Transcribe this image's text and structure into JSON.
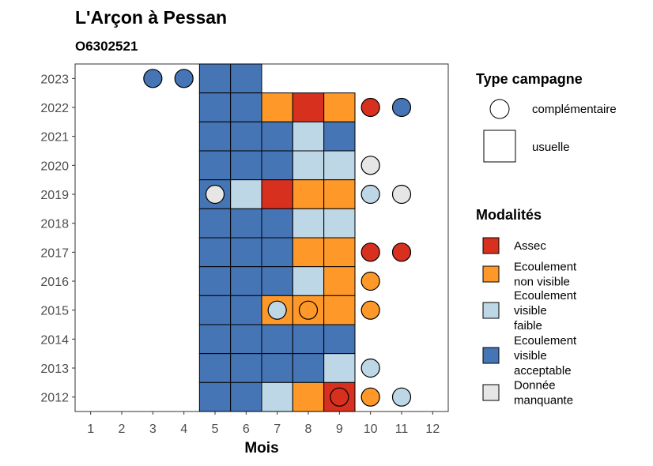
{
  "colors": {
    "assec": "#D7301F",
    "nonvisible": "#FE9929",
    "faible": "#BDD7E7",
    "acceptable": "#4575B4",
    "manquante": "#E6E6E6"
  },
  "chart_data": {
    "type": "heatmap",
    "title": "L'Arçon à Pessan",
    "subtitle": "O6302521",
    "xlabel": "Mois",
    "ylabel": "",
    "x_ticks": [
      "1",
      "2",
      "3",
      "4",
      "5",
      "6",
      "7",
      "8",
      "9",
      "10",
      "11",
      "12"
    ],
    "y_ticks": [
      "2012",
      "2013",
      "2014",
      "2015",
      "2016",
      "2017",
      "2018",
      "2019",
      "2020",
      "2021",
      "2022",
      "2023"
    ],
    "xlim": [
      0.5,
      12.5
    ],
    "ylim": [
      2011.5,
      2023.5
    ],
    "grid": false,
    "legend_shape": {
      "title": "Type campagne",
      "items": [
        {
          "label": "complémentaire",
          "shape": "circle"
        },
        {
          "label": "usuelle",
          "shape": "square"
        }
      ]
    },
    "legend_color": {
      "title": "Modalités",
      "items": [
        {
          "label_lines": [
            "Assec"
          ],
          "key": "assec"
        },
        {
          "label_lines": [
            "Ecoulement",
            "non visible"
          ],
          "key": "nonvisible"
        },
        {
          "label_lines": [
            "Ecoulement",
            "visible",
            "faible"
          ],
          "key": "faible"
        },
        {
          "label_lines": [
            "Ecoulement",
            "visible",
            "acceptable"
          ],
          "key": "acceptable"
        },
        {
          "label_lines": [
            "Donnée",
            "manquante"
          ],
          "key": "manquante"
        }
      ]
    },
    "usuelle": [
      {
        "year": 2023,
        "month": 5,
        "mod": "acceptable"
      },
      {
        "year": 2023,
        "month": 6,
        "mod": "acceptable"
      },
      {
        "year": 2022,
        "month": 5,
        "mod": "acceptable"
      },
      {
        "year": 2022,
        "month": 6,
        "mod": "acceptable"
      },
      {
        "year": 2022,
        "month": 7,
        "mod": "nonvisible"
      },
      {
        "year": 2022,
        "month": 8,
        "mod": "assec"
      },
      {
        "year": 2022,
        "month": 9,
        "mod": "nonvisible"
      },
      {
        "year": 2021,
        "month": 5,
        "mod": "acceptable"
      },
      {
        "year": 2021,
        "month": 6,
        "mod": "acceptable"
      },
      {
        "year": 2021,
        "month": 7,
        "mod": "acceptable"
      },
      {
        "year": 2021,
        "month": 8,
        "mod": "faible"
      },
      {
        "year": 2021,
        "month": 9,
        "mod": "acceptable"
      },
      {
        "year": 2020,
        "month": 5,
        "mod": "acceptable"
      },
      {
        "year": 2020,
        "month": 6,
        "mod": "acceptable"
      },
      {
        "year": 2020,
        "month": 7,
        "mod": "acceptable"
      },
      {
        "year": 2020,
        "month": 8,
        "mod": "faible"
      },
      {
        "year": 2020,
        "month": 9,
        "mod": "faible"
      },
      {
        "year": 2019,
        "month": 5,
        "mod": "acceptable"
      },
      {
        "year": 2019,
        "month": 6,
        "mod": "faible"
      },
      {
        "year": 2019,
        "month": 7,
        "mod": "assec"
      },
      {
        "year": 2019,
        "month": 8,
        "mod": "nonvisible"
      },
      {
        "year": 2019,
        "month": 9,
        "mod": "nonvisible"
      },
      {
        "year": 2018,
        "month": 5,
        "mod": "acceptable"
      },
      {
        "year": 2018,
        "month": 6,
        "mod": "acceptable"
      },
      {
        "year": 2018,
        "month": 7,
        "mod": "acceptable"
      },
      {
        "year": 2018,
        "month": 8,
        "mod": "faible"
      },
      {
        "year": 2018,
        "month": 9,
        "mod": "faible"
      },
      {
        "year": 2017,
        "month": 5,
        "mod": "acceptable"
      },
      {
        "year": 2017,
        "month": 6,
        "mod": "acceptable"
      },
      {
        "year": 2017,
        "month": 7,
        "mod": "acceptable"
      },
      {
        "year": 2017,
        "month": 8,
        "mod": "nonvisible"
      },
      {
        "year": 2017,
        "month": 9,
        "mod": "nonvisible"
      },
      {
        "year": 2016,
        "month": 5,
        "mod": "acceptable"
      },
      {
        "year": 2016,
        "month": 6,
        "mod": "acceptable"
      },
      {
        "year": 2016,
        "month": 7,
        "mod": "acceptable"
      },
      {
        "year": 2016,
        "month": 8,
        "mod": "faible"
      },
      {
        "year": 2016,
        "month": 9,
        "mod": "nonvisible"
      },
      {
        "year": 2015,
        "month": 5,
        "mod": "acceptable"
      },
      {
        "year": 2015,
        "month": 6,
        "mod": "acceptable"
      },
      {
        "year": 2015,
        "month": 7,
        "mod": "nonvisible"
      },
      {
        "year": 2015,
        "month": 8,
        "mod": "nonvisible"
      },
      {
        "year": 2015,
        "month": 9,
        "mod": "nonvisible"
      },
      {
        "year": 2014,
        "month": 5,
        "mod": "acceptable"
      },
      {
        "year": 2014,
        "month": 6,
        "mod": "acceptable"
      },
      {
        "year": 2014,
        "month": 7,
        "mod": "acceptable"
      },
      {
        "year": 2014,
        "month": 8,
        "mod": "acceptable"
      },
      {
        "year": 2014,
        "month": 9,
        "mod": "acceptable"
      },
      {
        "year": 2013,
        "month": 5,
        "mod": "acceptable"
      },
      {
        "year": 2013,
        "month": 6,
        "mod": "acceptable"
      },
      {
        "year": 2013,
        "month": 7,
        "mod": "acceptable"
      },
      {
        "year": 2013,
        "month": 8,
        "mod": "acceptable"
      },
      {
        "year": 2013,
        "month": 9,
        "mod": "faible"
      },
      {
        "year": 2012,
        "month": 5,
        "mod": "acceptable"
      },
      {
        "year": 2012,
        "month": 6,
        "mod": "acceptable"
      },
      {
        "year": 2012,
        "month": 7,
        "mod": "faible"
      },
      {
        "year": 2012,
        "month": 8,
        "mod": "nonvisible"
      },
      {
        "year": 2012,
        "month": 9,
        "mod": "assec"
      }
    ],
    "complementaire": [
      {
        "year": 2023,
        "month": 3,
        "mod": "acceptable"
      },
      {
        "year": 2023,
        "month": 4,
        "mod": "acceptable"
      },
      {
        "year": 2022,
        "month": 10,
        "mod": "assec"
      },
      {
        "year": 2022,
        "month": 11,
        "mod": "acceptable"
      },
      {
        "year": 2020,
        "month": 10,
        "mod": "manquante"
      },
      {
        "year": 2019,
        "month": 5,
        "mod": "manquante"
      },
      {
        "year": 2019,
        "month": 10,
        "mod": "faible"
      },
      {
        "year": 2019,
        "month": 11,
        "mod": "manquante"
      },
      {
        "year": 2017,
        "month": 10,
        "mod": "assec"
      },
      {
        "year": 2017,
        "month": 11,
        "mod": "assec"
      },
      {
        "year": 2016,
        "month": 10,
        "mod": "nonvisible"
      },
      {
        "year": 2015,
        "month": 7,
        "mod": "faible"
      },
      {
        "year": 2015,
        "month": 8,
        "mod": "nonvisible"
      },
      {
        "year": 2015,
        "month": 10,
        "mod": "nonvisible"
      },
      {
        "year": 2013,
        "month": 10,
        "mod": "faible"
      },
      {
        "year": 2012,
        "month": 9,
        "mod": "assec"
      },
      {
        "year": 2012,
        "month": 10,
        "mod": "nonvisible"
      },
      {
        "year": 2012,
        "month": 11,
        "mod": "faible"
      }
    ]
  }
}
